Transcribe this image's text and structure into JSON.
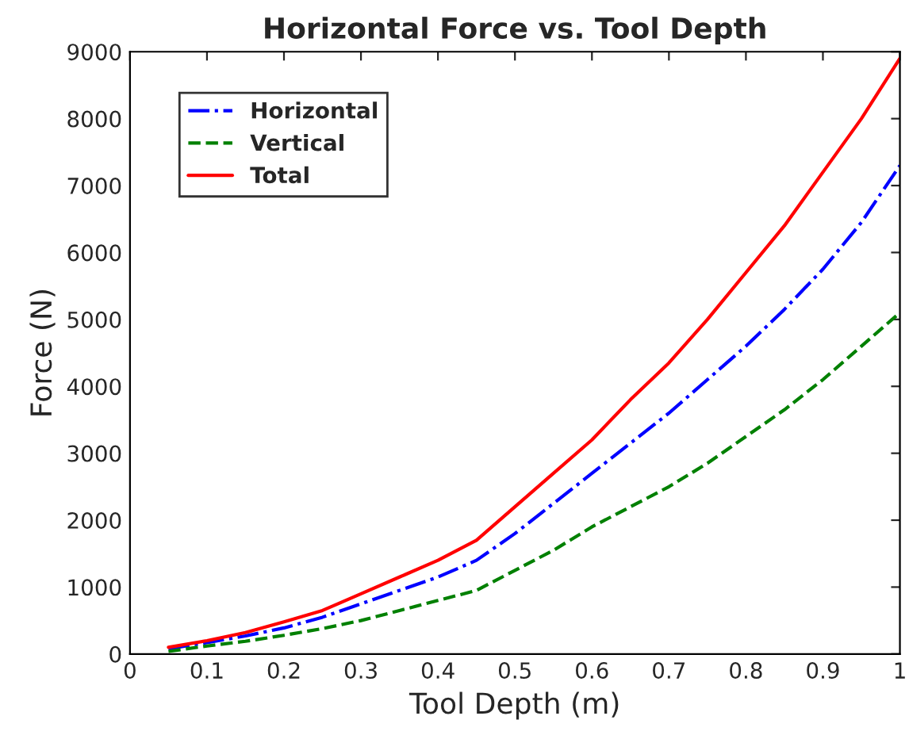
{
  "chart_data": {
    "type": "line",
    "title": "Horizontal Force vs. Tool Depth",
    "xlabel": "Tool Depth (m)",
    "ylabel": "Force (N)",
    "x": [
      0.05,
      0.1,
      0.15,
      0.2,
      0.25,
      0.3,
      0.35,
      0.4,
      0.45,
      0.5,
      0.55,
      0.6,
      0.65,
      0.7,
      0.75,
      0.8,
      0.85,
      0.9,
      0.95,
      1.0
    ],
    "series": [
      {
        "name": "Horizontal",
        "color": "#0000ff",
        "line_style": "dashdot",
        "values": [
          80,
          170,
          270,
          390,
          550,
          750,
          950,
          1150,
          1400,
          1800,
          2250,
          2700,
          3150,
          3600,
          4100,
          4600,
          5150,
          5750,
          6450,
          7300
        ]
      },
      {
        "name": "Vertical",
        "color": "#008000",
        "line_style": "dashed",
        "values": [
          40,
          120,
          190,
          280,
          380,
          500,
          650,
          800,
          950,
          1250,
          1550,
          1900,
          2200,
          2500,
          2850,
          3250,
          3650,
          4100,
          4600,
          5100
        ]
      },
      {
        "name": "Total",
        "color": "#ff0000",
        "line_style": "solid",
        "values": [
          100,
          200,
          320,
          480,
          650,
          900,
          1150,
          1400,
          1700,
          2200,
          2700,
          3200,
          3800,
          4350,
          5000,
          5700,
          6400,
          7200,
          8000,
          8900
        ]
      }
    ],
    "xlim": [
      0,
      1
    ],
    "xticks": [
      0,
      0.1,
      0.2,
      0.3,
      0.4,
      0.5,
      0.6,
      0.7,
      0.8,
      0.9,
      1
    ],
    "ylim": [
      0,
      9000
    ],
    "yticks": [
      0,
      1000,
      2000,
      3000,
      4000,
      5000,
      6000,
      7000,
      8000,
      9000
    ],
    "grid": false,
    "legend": "top left"
  }
}
